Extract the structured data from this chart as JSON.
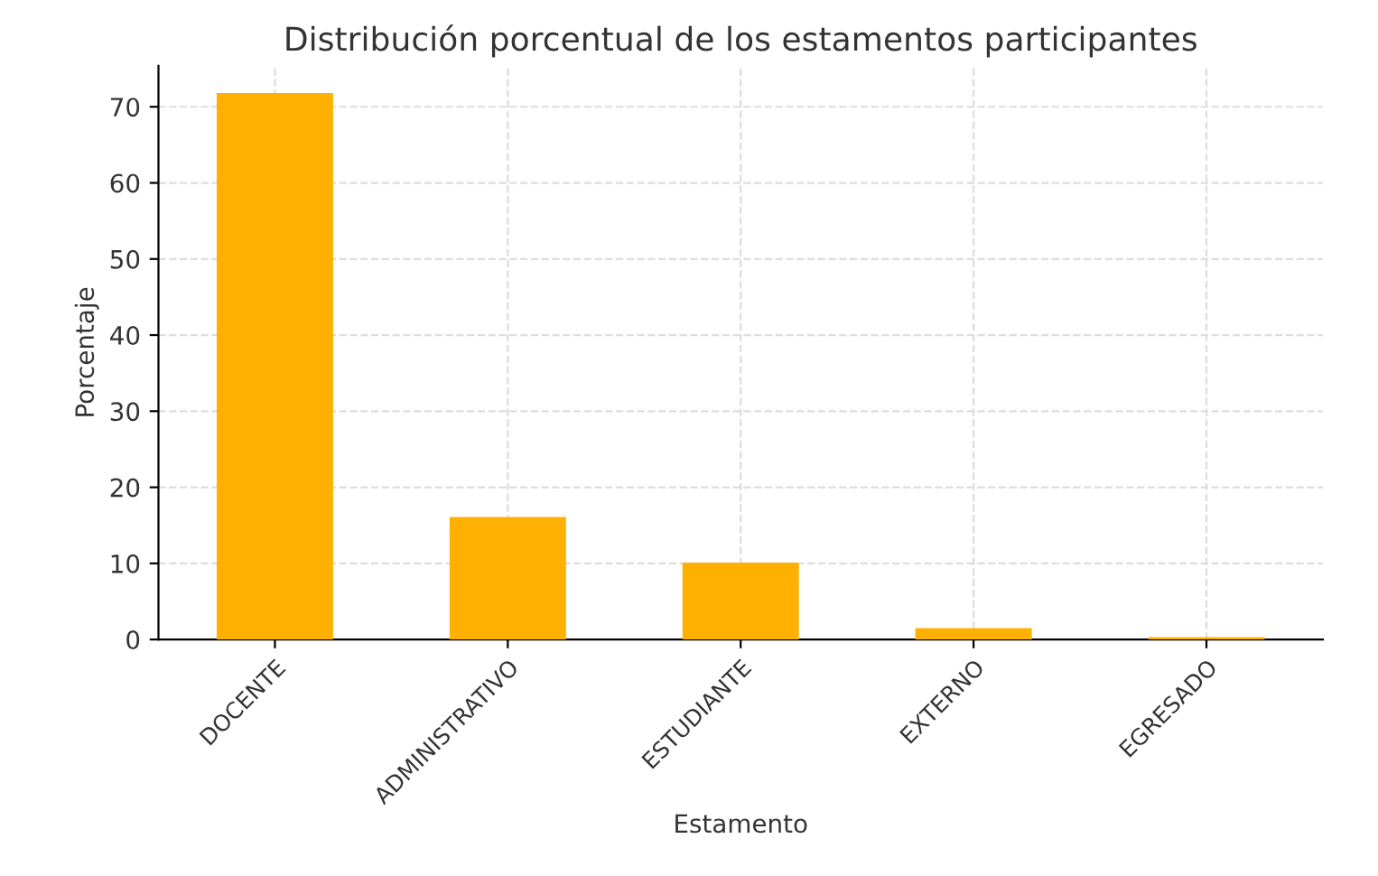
{
  "chart_data": {
    "type": "bar",
    "title": "Distribución porcentual de los estamentos participantes",
    "xlabel": "Estamento",
    "ylabel": "Porcentaje",
    "categories": [
      "DOCENTE",
      "ADMINISTRATIVO",
      "ESTUDIANTE",
      "EXTERNO",
      "EGRESADO"
    ],
    "values": [
      71.8,
      16.1,
      10.1,
      1.5,
      0.3
    ],
    "color": "#ffb000",
    "ylim": [
      0,
      75.4
    ],
    "yticks": [
      0,
      10,
      20,
      30,
      40,
      50,
      60,
      70
    ],
    "grid": true
  }
}
